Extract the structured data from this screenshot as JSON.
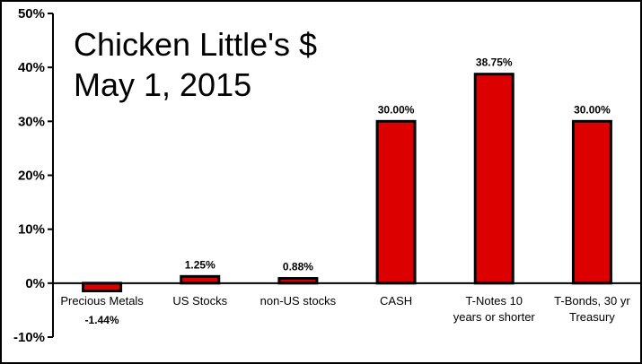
{
  "chart_data": {
    "type": "bar",
    "title_lines": [
      "Chicken Little's $",
      "May 1, 2015"
    ],
    "categories": [
      [
        "Precious Metals"
      ],
      [
        "US Stocks"
      ],
      [
        "non-US stocks"
      ],
      [
        "CASH"
      ],
      [
        "T-Notes 10",
        "years or shorter"
      ],
      [
        "T-Bonds, 30 yr",
        "Treasury"
      ]
    ],
    "values": [
      -1.44,
      1.25,
      0.88,
      30.0,
      38.75,
      30.0
    ],
    "data_labels": [
      "-1.44%",
      "1.25%",
      "0.88%",
      "30.00%",
      "38.75%",
      "30.00%"
    ],
    "ylim": [
      -10,
      50
    ],
    "yticks": [
      -10,
      0,
      10,
      20,
      30,
      40,
      50
    ],
    "ytick_labels": [
      "-10%",
      "0%",
      "10%",
      "20%",
      "30%",
      "40%",
      "50%"
    ],
    "bar_color": "#dd0000",
    "bar_edge_color": "#000000",
    "grid": false,
    "legend": "none"
  }
}
